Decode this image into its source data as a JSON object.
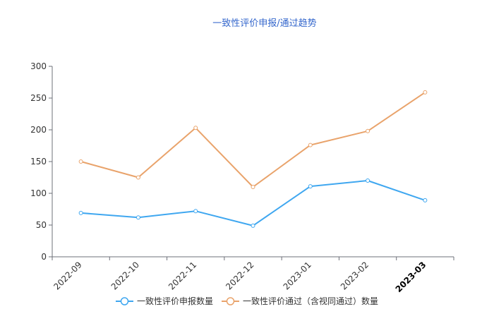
{
  "chart_data": {
    "type": "line",
    "title": "一致性评价申报/通过趋势",
    "xlabel": "",
    "ylabel": "",
    "categories": [
      "2022-09",
      "2022-10",
      "2022-11",
      "2022-12",
      "2023-01",
      "2023-02",
      "2023-03"
    ],
    "ylim": [
      0,
      300
    ],
    "yticks": [
      0,
      50,
      100,
      150,
      200,
      250,
      300
    ],
    "grid": false,
    "legend_position": "bottom",
    "highlighted_category": "2023-03",
    "series": [
      {
        "name": "一致性评价申报数量",
        "color": "#3fa7f0",
        "values": [
          69,
          62,
          72,
          49,
          111,
          120,
          89
        ]
      },
      {
        "name": "一致性评价通过（含视同通过）数量",
        "color": "#e9a36b",
        "values": [
          150,
          125,
          203,
          110,
          176,
          198,
          259
        ]
      }
    ],
    "colors": {
      "title": "#3366cc",
      "axis": "#6e7079",
      "tick_label": "#333333"
    }
  }
}
